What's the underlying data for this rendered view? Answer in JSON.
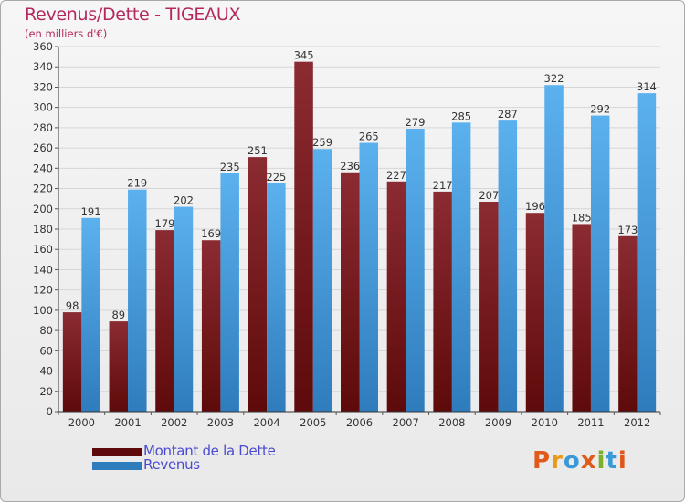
{
  "title": "Revenus/Dette - TIGEAUX",
  "subtitle": "(en milliers d'€)",
  "brand": "Proxiti",
  "colors": {
    "debt_top": "#8b2b32",
    "debt_bottom": "#5e0a0a",
    "revenue_top": "#5bb1ee",
    "revenue_bottom": "#2f7cbd",
    "brand_letters": [
      "#e05a1a",
      "#e89a1a",
      "#3a9ad9",
      "#e05a1a",
      "#7ab02a",
      "#3a9ad9",
      "#e0561a"
    ]
  },
  "chart_data": {
    "type": "bar",
    "title": "Revenus/Dette - TIGEAUX",
    "subtitle": "(en milliers d'€)",
    "categories": [
      "2000",
      "2001",
      "2002",
      "2003",
      "2004",
      "2005",
      "2006",
      "2007",
      "2008",
      "2009",
      "2010",
      "2011",
      "2012"
    ],
    "series": [
      {
        "name": "Montant de la Dette",
        "values": [
          98,
          89,
          179,
          169,
          251,
          345,
          236,
          227,
          217,
          207,
          196,
          185,
          173
        ]
      },
      {
        "name": "Revenus",
        "values": [
          191,
          219,
          202,
          235,
          225,
          259,
          265,
          279,
          285,
          287,
          322,
          292,
          314
        ]
      }
    ],
    "ylim": [
      0,
      360
    ],
    "ytick_step": 20,
    "grid": true,
    "legend_position": "bottom-left"
  }
}
